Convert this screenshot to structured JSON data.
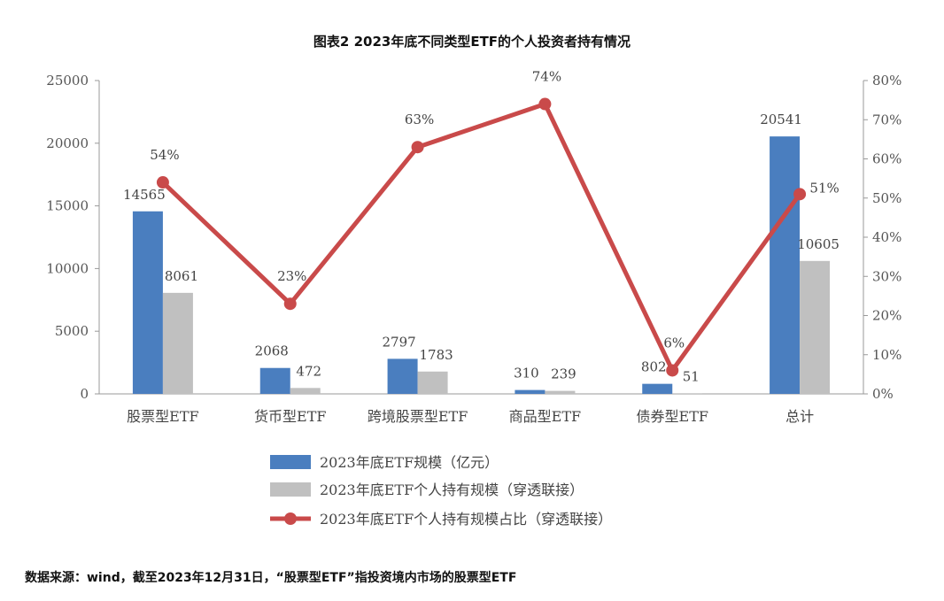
{
  "title": "图表2  2023年底不同类型ETF的个人投资者持有情况",
  "source": "数据来源：wind，截至2023年12月31日，“股票型ETF”指投资境内市场的股票型ETF",
  "chart_data": {
    "type": "bar",
    "categories": [
      "股票型ETF",
      "货币型ETF",
      "跨境股票型ETF",
      "商品型ETF",
      "债券型ETF",
      "总计"
    ],
    "series": [
      {
        "name": "2023年底ETF规模（亿元）",
        "type": "bar",
        "axis": "left",
        "color": "#4a7ebf",
        "values": [
          14565,
          2068,
          2797,
          310,
          802,
          20541
        ]
      },
      {
        "name": "2023年底ETF个人持有规模（穿透联接）",
        "type": "bar",
        "axis": "left",
        "color": "#c0c0c0",
        "values": [
          8061,
          472,
          1783,
          239,
          51,
          10605
        ]
      },
      {
        "name": "2023年底ETF个人持有规模占比（穿透联接）",
        "type": "line",
        "axis": "right",
        "color": "#c94a4a",
        "values": [
          54,
          23,
          63,
          74,
          6,
          51
        ],
        "labels": [
          "54%",
          "23%",
          "63%",
          "74%",
          "6%",
          "51%"
        ]
      }
    ],
    "y_left": {
      "min": 0,
      "max": 25000,
      "ticks": [
        "0",
        "5000",
        "10000",
        "15000",
        "20000",
        "25000"
      ]
    },
    "y_right": {
      "min": 0,
      "max": 80,
      "ticks": [
        "0%",
        "10%",
        "20%",
        "30%",
        "40%",
        "50%",
        "60%",
        "70%",
        "80%"
      ]
    },
    "legend_position": "bottom",
    "grid": false
  }
}
